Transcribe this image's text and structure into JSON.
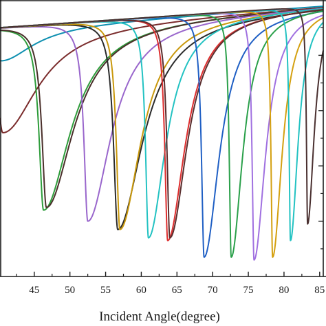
{
  "chart_data": {
    "type": "line",
    "xlabel": "Incident Angle(degree)",
    "ylabel": "",
    "xlim": [
      40.2,
      85.5
    ],
    "ylim": [
      0,
      1
    ],
    "x_ticks": [
      45,
      50,
      55,
      60,
      65,
      70,
      75,
      80,
      85
    ],
    "x_tick_labels": [
      "45",
      "50",
      "55",
      "60",
      "65",
      "70",
      "75",
      "80",
      "85"
    ],
    "grid": false,
    "series": [
      {
        "color": "#0d8fb0",
        "dip_angle": 40.3,
        "dip_value": 0.78,
        "width": 1.6
      },
      {
        "color": "#7a2b2b",
        "dip_angle": 40.6,
        "dip_value": 0.52,
        "width": 1.8
      },
      {
        "color": "#2d9c3a",
        "dip_angle": 46.3,
        "dip_value": 0.24,
        "width": 1.4
      },
      {
        "color": "#4a2f2a",
        "dip_angle": 46.7,
        "dip_value": 0.25,
        "width": 1.4
      },
      {
        "color": "#9966cc",
        "dip_angle": 52.5,
        "dip_value": 0.2,
        "width": 1.2
      },
      {
        "color": "#2a2a2a",
        "dip_angle": 56.7,
        "dip_value": 0.17,
        "width": 1.3
      },
      {
        "color": "#c9980b",
        "dip_angle": 57.0,
        "dip_value": 0.17,
        "width": 1.1
      },
      {
        "color": "#22c2c2",
        "dip_angle": 61.0,
        "dip_value": 0.14,
        "width": 0.9
      },
      {
        "color": "#dd2e2e",
        "dip_angle": 63.7,
        "dip_value": 0.13,
        "width": 0.9
      },
      {
        "color": "#5a2e2e",
        "dip_angle": 64.0,
        "dip_value": 0.14,
        "width": 0.9
      },
      {
        "color": "#1f5fc4",
        "dip_angle": 68.8,
        "dip_value": 0.07,
        "width": 0.8
      },
      {
        "color": "#2aa04a",
        "dip_angle": 72.6,
        "dip_value": 0.07,
        "width": 0.6
      },
      {
        "color": "#a070e0",
        "dip_angle": 75.8,
        "dip_value": 0.06,
        "width": 0.6
      },
      {
        "color": "#d4a010",
        "dip_angle": 78.4,
        "dip_value": 0.07,
        "width": 0.5
      },
      {
        "color": "#22c2c2",
        "dip_angle": 80.9,
        "dip_value": 0.13,
        "width": 0.4
      },
      {
        "color": "#4a3030",
        "dip_angle": 83.3,
        "dip_value": 0.19,
        "width": 0.35
      }
    ]
  }
}
